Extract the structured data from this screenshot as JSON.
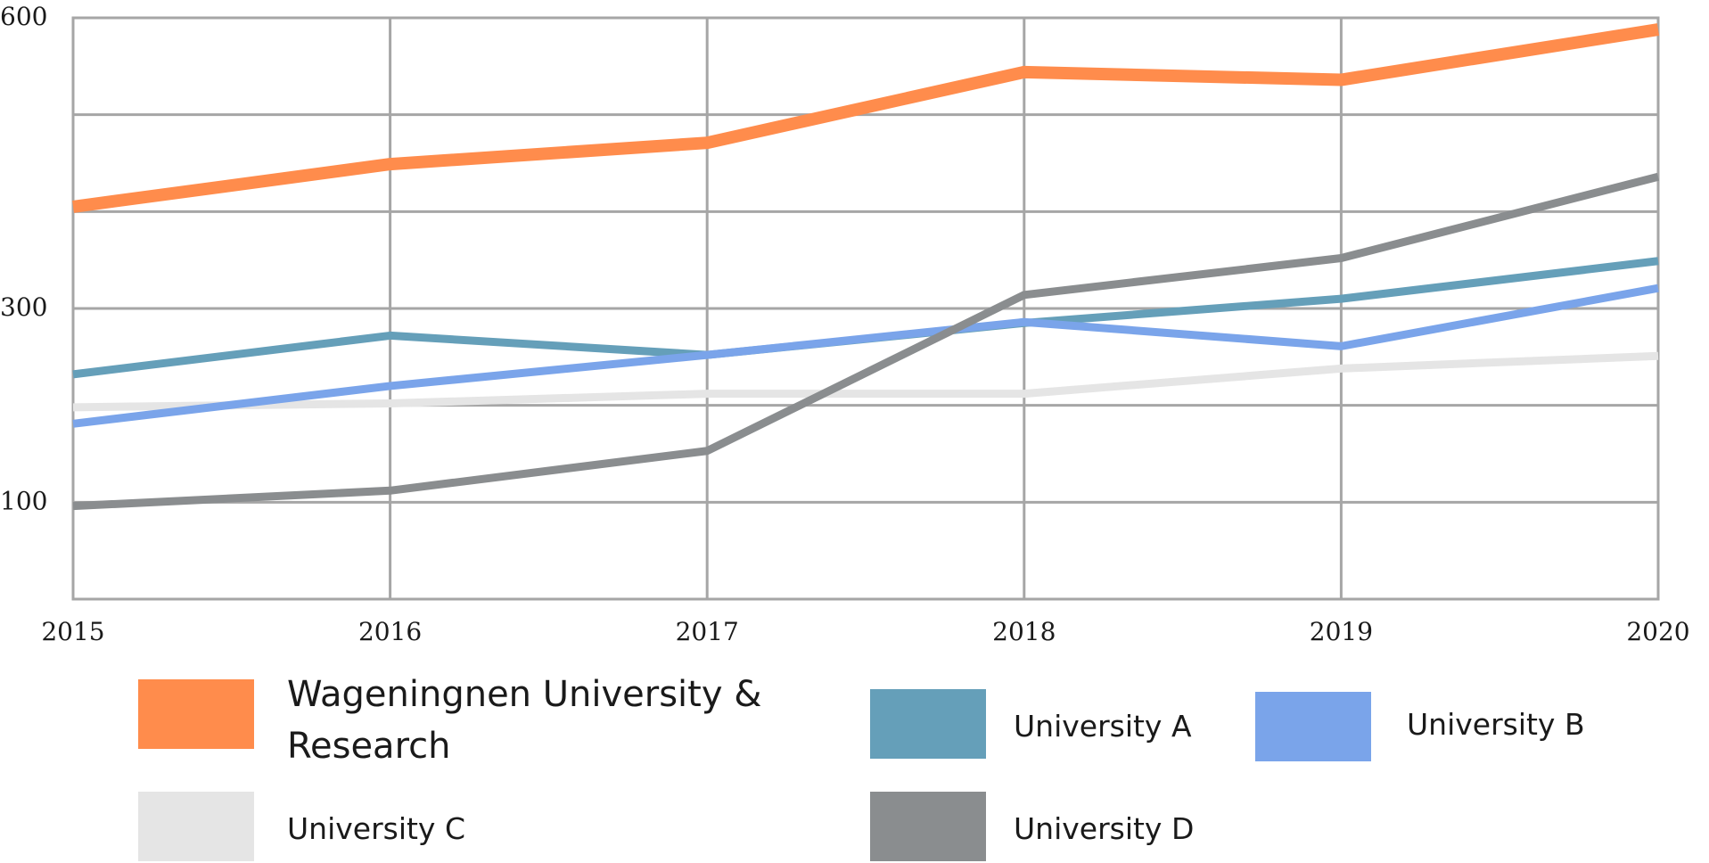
{
  "chart_data": {
    "type": "line",
    "x": [
      "2015",
      "2016",
      "2017",
      "2018",
      "2019",
      "2020"
    ],
    "y_ticks": [
      "100",
      "300",
      "600"
    ],
    "y_tick_values": [
      100,
      300,
      600
    ],
    "ylim": [
      0,
      600
    ],
    "grid": true,
    "legend_position": "bottom",
    "series": [
      {
        "name": "Wageningnen University & Research",
        "values": [
          405,
          449,
          471,
          544,
          536,
          588
        ],
        "color": "#ff8c4c"
      },
      {
        "name": "University A",
        "values": [
          232,
          272,
          252,
          285,
          310,
          349
        ],
        "color": "#659fb9"
      },
      {
        "name": "University B",
        "values": [
          181,
          220,
          252,
          286,
          261,
          321
        ],
        "color": "#7aa4ea"
      },
      {
        "name": "University C",
        "values": [
          198,
          202,
          212,
          212,
          238,
          251
        ],
        "color": "#e5e5e5"
      },
      {
        "name": "University D",
        "values": [
          96,
          112,
          153,
          314,
          352,
          436
        ],
        "color": "#8a8d8f"
      }
    ]
  }
}
